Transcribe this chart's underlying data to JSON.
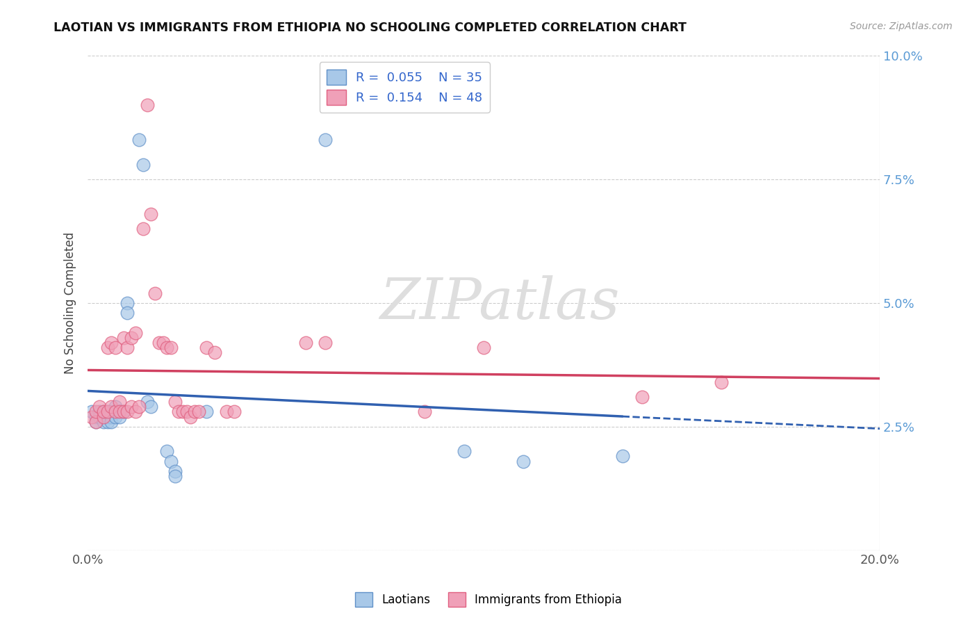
{
  "title": "LAOTIAN VS IMMIGRANTS FROM ETHIOPIA NO SCHOOLING COMPLETED CORRELATION CHART",
  "source": "Source: ZipAtlas.com",
  "ylabel": "No Schooling Completed",
  "xlim": [
    0.0,
    0.2
  ],
  "ylim": [
    0.0,
    0.1
  ],
  "legend_r1": "0.055",
  "legend_n1": "35",
  "legend_r2": "0.154",
  "legend_n2": "48",
  "blue_color": "#A8C8E8",
  "pink_color": "#F0A0B8",
  "blue_edge_color": "#6090C8",
  "pink_edge_color": "#E06080",
  "blue_line_color": "#3060B0",
  "pink_line_color": "#D04060",
  "background_color": "#FFFFFF",
  "grid_color": "#CCCCCC",
  "watermark_color": "#DEDEDE",
  "blue_scatter": [
    [
      0.001,
      0.028
    ],
    [
      0.002,
      0.027
    ],
    [
      0.002,
      0.026
    ],
    [
      0.003,
      0.028
    ],
    [
      0.003,
      0.027
    ],
    [
      0.004,
      0.028
    ],
    [
      0.004,
      0.027
    ],
    [
      0.004,
      0.026
    ],
    [
      0.005,
      0.028
    ],
    [
      0.005,
      0.027
    ],
    [
      0.005,
      0.026
    ],
    [
      0.006,
      0.028
    ],
    [
      0.006,
      0.027
    ],
    [
      0.006,
      0.026
    ],
    [
      0.007,
      0.029
    ],
    [
      0.007,
      0.028
    ],
    [
      0.007,
      0.027
    ],
    [
      0.008,
      0.028
    ],
    [
      0.008,
      0.027
    ],
    [
      0.009,
      0.028
    ],
    [
      0.01,
      0.05
    ],
    [
      0.01,
      0.048
    ],
    [
      0.013,
      0.083
    ],
    [
      0.014,
      0.078
    ],
    [
      0.015,
      0.03
    ],
    [
      0.016,
      0.029
    ],
    [
      0.02,
      0.02
    ],
    [
      0.021,
      0.018
    ],
    [
      0.022,
      0.016
    ],
    [
      0.022,
      0.015
    ],
    [
      0.03,
      0.028
    ],
    [
      0.06,
      0.083
    ],
    [
      0.095,
      0.02
    ],
    [
      0.11,
      0.018
    ],
    [
      0.135,
      0.019
    ]
  ],
  "pink_scatter": [
    [
      0.001,
      0.027
    ],
    [
      0.002,
      0.026
    ],
    [
      0.002,
      0.028
    ],
    [
      0.003,
      0.029
    ],
    [
      0.004,
      0.027
    ],
    [
      0.004,
      0.028
    ],
    [
      0.005,
      0.028
    ],
    [
      0.005,
      0.041
    ],
    [
      0.006,
      0.042
    ],
    [
      0.006,
      0.029
    ],
    [
      0.007,
      0.041
    ],
    [
      0.007,
      0.028
    ],
    [
      0.008,
      0.03
    ],
    [
      0.008,
      0.028
    ],
    [
      0.009,
      0.043
    ],
    [
      0.009,
      0.028
    ],
    [
      0.01,
      0.041
    ],
    [
      0.01,
      0.028
    ],
    [
      0.011,
      0.043
    ],
    [
      0.011,
      0.029
    ],
    [
      0.012,
      0.044
    ],
    [
      0.012,
      0.028
    ],
    [
      0.013,
      0.029
    ],
    [
      0.014,
      0.065
    ],
    [
      0.015,
      0.09
    ],
    [
      0.016,
      0.068
    ],
    [
      0.017,
      0.052
    ],
    [
      0.018,
      0.042
    ],
    [
      0.019,
      0.042
    ],
    [
      0.02,
      0.041
    ],
    [
      0.021,
      0.041
    ],
    [
      0.022,
      0.03
    ],
    [
      0.023,
      0.028
    ],
    [
      0.024,
      0.028
    ],
    [
      0.025,
      0.028
    ],
    [
      0.026,
      0.027
    ],
    [
      0.027,
      0.028
    ],
    [
      0.028,
      0.028
    ],
    [
      0.03,
      0.041
    ],
    [
      0.032,
      0.04
    ],
    [
      0.035,
      0.028
    ],
    [
      0.037,
      0.028
    ],
    [
      0.055,
      0.042
    ],
    [
      0.06,
      0.042
    ],
    [
      0.085,
      0.028
    ],
    [
      0.1,
      0.041
    ],
    [
      0.14,
      0.031
    ],
    [
      0.16,
      0.034
    ]
  ]
}
